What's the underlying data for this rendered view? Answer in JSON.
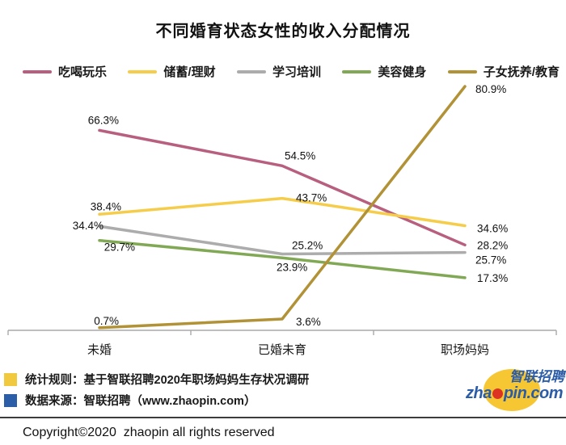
{
  "title": "不同婚育状态女性的收入分配情况",
  "chart_data": {
    "type": "line",
    "title": "不同婚育状态女性的收入分配情况",
    "categories": [
      "未婚",
      "已婚未育",
      "职场妈妈"
    ],
    "series": [
      {
        "name": "吃喝玩乐",
        "color": "#B85F80",
        "values": [
          66.3,
          54.5,
          28.2
        ]
      },
      {
        "name": "储蓄/理财",
        "color": "#F5CD4B",
        "values": [
          38.4,
          43.7,
          34.6
        ]
      },
      {
        "name": "学习培训",
        "color": "#ACACAC",
        "values": [
          34.4,
          25.2,
          25.7
        ]
      },
      {
        "name": "美容健身",
        "color": "#81A854",
        "values": [
          29.7,
          23.9,
          17.3
        ]
      },
      {
        "name": "子女抚养/教育",
        "color": "#B29237",
        "values": [
          0.7,
          3.6,
          80.9
        ]
      }
    ],
    "value_suffix": "%",
    "ylim": [
      0,
      85
    ],
    "grid": false,
    "legend_position": "top",
    "axis_color": "#A9A9A9"
  },
  "footer": {
    "notes": [
      {
        "marker_color": "#F0C93F",
        "text": "统计规则：基于智联招聘2020年职场妈妈生存状况调研"
      },
      {
        "marker_color": "#2B5EA7",
        "text": "数据来源：智联招聘（www.zhaopin.com）"
      }
    ],
    "copyright": "Copyright©2020  zhaopin all rights reserved",
    "logo": {
      "cn": "智联招聘",
      "en_pre": "zha",
      "en_post": "pin.com",
      "dot_color": "#DD3322",
      "blob_color": "#F6C733",
      "text_color": "#2B5CA8"
    }
  }
}
